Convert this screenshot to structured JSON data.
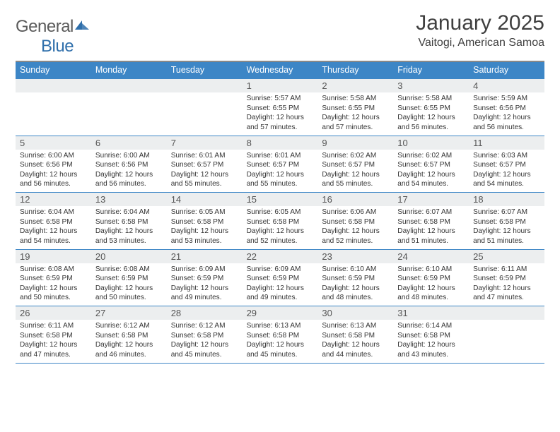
{
  "brand": {
    "part1": "General",
    "part2": "Blue",
    "mark_color": "#2f6fab"
  },
  "title": "January 2025",
  "subtitle": "Vaitogi, American Samoa",
  "colors": {
    "header_blue": "#3d86c6",
    "band": "#eceeef",
    "rule": "#3d86c6",
    "ink": "#3a3a3a"
  },
  "dow": [
    "Sunday",
    "Monday",
    "Tuesday",
    "Wednesday",
    "Thursday",
    "Friday",
    "Saturday"
  ],
  "weeks": [
    [
      null,
      null,
      null,
      {
        "n": 1,
        "sr": "5:57 AM",
        "ss": "6:55 PM",
        "dl": "12 hours and 57 minutes."
      },
      {
        "n": 2,
        "sr": "5:58 AM",
        "ss": "6:55 PM",
        "dl": "12 hours and 57 minutes."
      },
      {
        "n": 3,
        "sr": "5:58 AM",
        "ss": "6:55 PM",
        "dl": "12 hours and 56 minutes."
      },
      {
        "n": 4,
        "sr": "5:59 AM",
        "ss": "6:56 PM",
        "dl": "12 hours and 56 minutes."
      }
    ],
    [
      {
        "n": 5,
        "sr": "6:00 AM",
        "ss": "6:56 PM",
        "dl": "12 hours and 56 minutes."
      },
      {
        "n": 6,
        "sr": "6:00 AM",
        "ss": "6:56 PM",
        "dl": "12 hours and 56 minutes."
      },
      {
        "n": 7,
        "sr": "6:01 AM",
        "ss": "6:57 PM",
        "dl": "12 hours and 55 minutes."
      },
      {
        "n": 8,
        "sr": "6:01 AM",
        "ss": "6:57 PM",
        "dl": "12 hours and 55 minutes."
      },
      {
        "n": 9,
        "sr": "6:02 AM",
        "ss": "6:57 PM",
        "dl": "12 hours and 55 minutes."
      },
      {
        "n": 10,
        "sr": "6:02 AM",
        "ss": "6:57 PM",
        "dl": "12 hours and 54 minutes."
      },
      {
        "n": 11,
        "sr": "6:03 AM",
        "ss": "6:57 PM",
        "dl": "12 hours and 54 minutes."
      }
    ],
    [
      {
        "n": 12,
        "sr": "6:04 AM",
        "ss": "6:58 PM",
        "dl": "12 hours and 54 minutes."
      },
      {
        "n": 13,
        "sr": "6:04 AM",
        "ss": "6:58 PM",
        "dl": "12 hours and 53 minutes."
      },
      {
        "n": 14,
        "sr": "6:05 AM",
        "ss": "6:58 PM",
        "dl": "12 hours and 53 minutes."
      },
      {
        "n": 15,
        "sr": "6:05 AM",
        "ss": "6:58 PM",
        "dl": "12 hours and 52 minutes."
      },
      {
        "n": 16,
        "sr": "6:06 AM",
        "ss": "6:58 PM",
        "dl": "12 hours and 52 minutes."
      },
      {
        "n": 17,
        "sr": "6:07 AM",
        "ss": "6:58 PM",
        "dl": "12 hours and 51 minutes."
      },
      {
        "n": 18,
        "sr": "6:07 AM",
        "ss": "6:58 PM",
        "dl": "12 hours and 51 minutes."
      }
    ],
    [
      {
        "n": 19,
        "sr": "6:08 AM",
        "ss": "6:59 PM",
        "dl": "12 hours and 50 minutes."
      },
      {
        "n": 20,
        "sr": "6:08 AM",
        "ss": "6:59 PM",
        "dl": "12 hours and 50 minutes."
      },
      {
        "n": 21,
        "sr": "6:09 AM",
        "ss": "6:59 PM",
        "dl": "12 hours and 49 minutes."
      },
      {
        "n": 22,
        "sr": "6:09 AM",
        "ss": "6:59 PM",
        "dl": "12 hours and 49 minutes."
      },
      {
        "n": 23,
        "sr": "6:10 AM",
        "ss": "6:59 PM",
        "dl": "12 hours and 48 minutes."
      },
      {
        "n": 24,
        "sr": "6:10 AM",
        "ss": "6:59 PM",
        "dl": "12 hours and 48 minutes."
      },
      {
        "n": 25,
        "sr": "6:11 AM",
        "ss": "6:59 PM",
        "dl": "12 hours and 47 minutes."
      }
    ],
    [
      {
        "n": 26,
        "sr": "6:11 AM",
        "ss": "6:58 PM",
        "dl": "12 hours and 47 minutes."
      },
      {
        "n": 27,
        "sr": "6:12 AM",
        "ss": "6:58 PM",
        "dl": "12 hours and 46 minutes."
      },
      {
        "n": 28,
        "sr": "6:12 AM",
        "ss": "6:58 PM",
        "dl": "12 hours and 45 minutes."
      },
      {
        "n": 29,
        "sr": "6:13 AM",
        "ss": "6:58 PM",
        "dl": "12 hours and 45 minutes."
      },
      {
        "n": 30,
        "sr": "6:13 AM",
        "ss": "6:58 PM",
        "dl": "12 hours and 44 minutes."
      },
      {
        "n": 31,
        "sr": "6:14 AM",
        "ss": "6:58 PM",
        "dl": "12 hours and 43 minutes."
      },
      null
    ]
  ],
  "labels": {
    "sunrise": "Sunrise:",
    "sunset": "Sunset:",
    "daylight": "Daylight:"
  }
}
